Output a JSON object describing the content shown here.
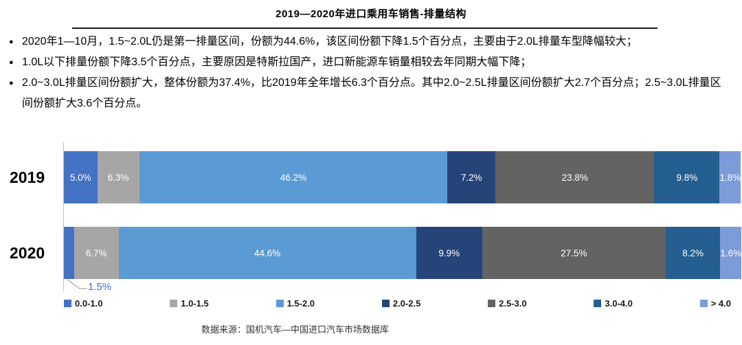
{
  "title": "2019—2020年进口乘用车销售-排量结构",
  "bullets": [
    "2020年1—10月，1.5~2.0L仍是第一排量区间，份额为44.6%，该区间份额下降1.5个百分点，主要由于2.0L排量车型降幅较大；",
    "1.0L以下排量份额下降3.5个百分点，主要原因是特斯拉国产，进口新能源车销量相较去年同期大幅下降；",
    "2.0~3.0L排量区间份额扩大，整体份额为37.4%，比2019年全年增长6.3个百分点。其中2.0~2.5L排量区间份额扩大2.7个百分点；2.5~3.0L排量区间份额扩大3.6个百分点。"
  ],
  "footer": {
    "source": "数据来源：国机汽车—中国进口汽车市场数据库"
  },
  "colors": {
    "callout_text": "#4472C4",
    "axis_line": "#BFBFBF",
    "bar_label": "#FFFFFF",
    "title_rule": "#1A1A1A"
  },
  "chart_data": {
    "type": "bar",
    "variant": "horizontal-stacked",
    "title": "2019—2020年进口乘用车销售-排量结构",
    "categories": [
      "2019",
      "2020"
    ],
    "unit": "%",
    "xlim": [
      0,
      100
    ],
    "grid": false,
    "legend_position": "bottom",
    "series": [
      {
        "name": "0.0-1.0",
        "color": "#4472C4",
        "values": [
          5.0,
          1.5
        ]
      },
      {
        "name": "1.0-1.5",
        "color": "#A6A6A6",
        "values": [
          6.3,
          6.7
        ]
      },
      {
        "name": "1.5-2.0",
        "color": "#5B9BD5",
        "values": [
          46.2,
          44.6
        ]
      },
      {
        "name": "2.0-2.5",
        "color": "#264478",
        "values": [
          7.2,
          9.9
        ]
      },
      {
        "name": "2.5-3.0",
        "color": "#636363",
        "values": [
          23.8,
          27.5
        ]
      },
      {
        "name": "3.0-4.0",
        "color": "#255E91",
        "values": [
          9.8,
          8.2
        ]
      },
      {
        "name": "> 4.0",
        "color": "#7C9BD9",
        "values": [
          1.8,
          1.6
        ]
      }
    ],
    "data_labels": {
      "2019": [
        "5.0%",
        "6.3%",
        "46.2%",
        "7.2%",
        "23.8%",
        "9.8%",
        "1.8%"
      ],
      "2020": [
        "1.5%",
        "6.7%",
        "44.6%",
        "9.9%",
        "27.5%",
        "8.2%",
        "1.6%"
      ]
    },
    "callout": {
      "category_index": 1,
      "series_index": 0,
      "text": "1.5%"
    }
  }
}
